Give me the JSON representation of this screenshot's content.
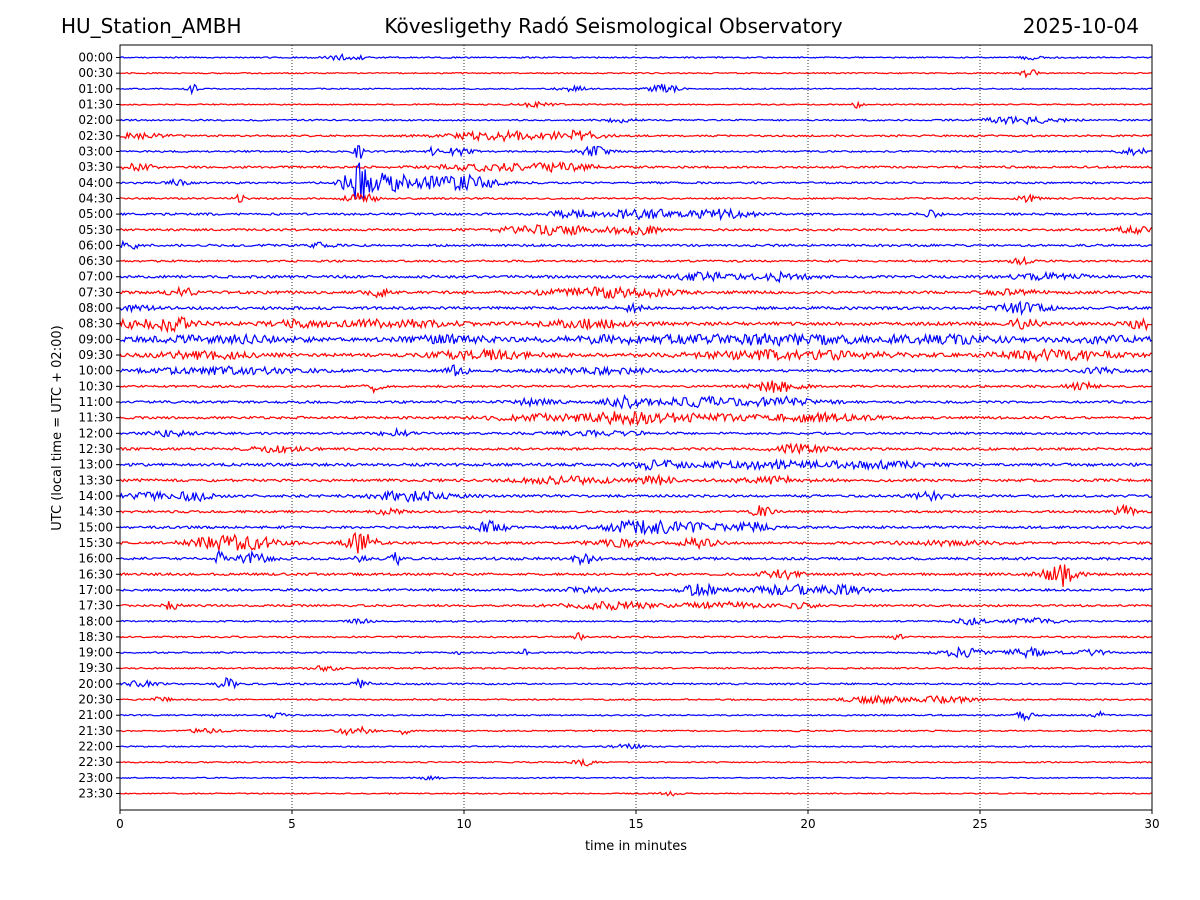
{
  "header": {
    "station": "HU_Station_AMBH",
    "observatory": "Kövesligethy Radó Seismological Observatory",
    "date": "2025-10-04"
  },
  "chart_data": {
    "type": "line",
    "title": "Kövesligethy Radó Seismological Observatory",
    "xlabel": "time in minutes",
    "ylabel": "UTC (local time = UTC + 02:00)",
    "xlim": [
      0,
      30
    ],
    "x_ticks": [
      0,
      5,
      10,
      15,
      20,
      25,
      30
    ],
    "grid": "vertical dotted lines at 5-minute ticks",
    "series_colors": [
      "#0000ff",
      "#ff0000"
    ],
    "noise_level": [
      0.6,
      0.55,
      0.55,
      0.55,
      0.7,
      0.85,
      0.8,
      0.95,
      0.85,
      0.8,
      0.95,
      0.95,
      1.0,
      0.9,
      1.2,
      1.3,
      1.3,
      1.5,
      1.6,
      1.5,
      1.2,
      1.0,
      1.1,
      1.15,
      1.0,
      1.1,
      1.3,
      1.2,
      1.2,
      1.0,
      1.1,
      1.1,
      1.2,
      1.1,
      1.0,
      0.9,
      0.7,
      0.75,
      0.7,
      0.7,
      0.8,
      0.65,
      0.65,
      0.65,
      0.6,
      0.6,
      0.5,
      0.5
    ],
    "rows": [
      {
        "label": "00:00",
        "bursts": [
          [
            6.6,
            0.35,
            3
          ],
          [
            26.5,
            0.2,
            2.5
          ]
        ]
      },
      {
        "label": "00:30",
        "bursts": [
          [
            26.4,
            0.15,
            5
          ]
        ]
      },
      {
        "label": "01:00",
        "bursts": [
          [
            2.1,
            0.1,
            4
          ],
          [
            15.8,
            0.3,
            4
          ],
          [
            13.2,
            0.3,
            2
          ]
        ]
      },
      {
        "label": "01:30",
        "bursts": [
          [
            21.4,
            0.1,
            3
          ],
          [
            12.0,
            0.4,
            2
          ]
        ]
      },
      {
        "label": "02:00",
        "bursts": [
          [
            26.2,
            0.8,
            3
          ],
          [
            14.5,
            0.3,
            2
          ]
        ]
      },
      {
        "label": "02:30",
        "bursts": [
          [
            11.0,
            1.0,
            4
          ],
          [
            13.3,
            0.5,
            4
          ],
          [
            0.6,
            0.6,
            2
          ]
        ]
      },
      {
        "label": "03:00",
        "bursts": [
          [
            6.9,
            0.1,
            10
          ],
          [
            9.1,
            0.1,
            5
          ],
          [
            9.8,
            0.3,
            3
          ],
          [
            13.8,
            0.3,
            4
          ],
          [
            29.5,
            0.3,
            3
          ]
        ]
      },
      {
        "label": "03:30",
        "bursts": [
          [
            11.0,
            1.2,
            3.5
          ],
          [
            13.0,
            0.5,
            3
          ],
          [
            0.5,
            0.4,
            2.5
          ]
        ]
      },
      {
        "label": "04:00",
        "bursts": [
          [
            6.9,
            0.25,
            15
          ],
          [
            7.6,
            0.6,
            7
          ],
          [
            9.3,
            1.0,
            5
          ],
          [
            10.3,
            0.4,
            4
          ],
          [
            1.7,
            0.2,
            3
          ]
        ]
      },
      {
        "label": "04:30",
        "bursts": [
          [
            3.5,
            0.1,
            4
          ],
          [
            7.0,
            0.3,
            5
          ],
          [
            26.4,
            0.2,
            3
          ]
        ]
      },
      {
        "label": "05:00",
        "bursts": [
          [
            15.2,
            0.9,
            4
          ],
          [
            17.6,
            0.6,
            4
          ],
          [
            13.0,
            0.5,
            2.5
          ],
          [
            23.6,
            0.2,
            3
          ]
        ]
      },
      {
        "label": "05:30",
        "bursts": [
          [
            12.5,
            1.0,
            4
          ],
          [
            15.0,
            0.5,
            4
          ],
          [
            29.5,
            0.4,
            3
          ]
        ]
      },
      {
        "label": "06:00",
        "bursts": [
          [
            0.2,
            0.3,
            3
          ],
          [
            5.8,
            0.3,
            2
          ]
        ]
      },
      {
        "label": "06:30",
        "bursts": [
          [
            26.2,
            0.2,
            2.5
          ]
        ]
      },
      {
        "label": "07:00",
        "bursts": [
          [
            17.0,
            0.6,
            3.5
          ],
          [
            19.2,
            0.6,
            3.5
          ],
          [
            27.0,
            0.8,
            2.5
          ]
        ]
      },
      {
        "label": "07:30",
        "bursts": [
          [
            1.8,
            0.25,
            4
          ],
          [
            7.5,
            0.2,
            4
          ],
          [
            13.5,
            1.0,
            3
          ],
          [
            15.0,
            0.8,
            3
          ],
          [
            26.0,
            0.5,
            2
          ]
        ]
      },
      {
        "label": "08:00",
        "bursts": [
          [
            14.9,
            0.2,
            3
          ],
          [
            26.2,
            0.5,
            4
          ],
          [
            0.5,
            0.4,
            2
          ]
        ]
      },
      {
        "label": "08:30",
        "bursts": [
          [
            0.3,
            1.3,
            3
          ],
          [
            1.5,
            0.3,
            5
          ],
          [
            5.0,
            0.5,
            3
          ],
          [
            8.0,
            1.2,
            3
          ],
          [
            13.5,
            1.0,
            3
          ],
          [
            26.3,
            0.3,
            4
          ],
          [
            29.7,
            0.3,
            4
          ]
        ]
      },
      {
        "label": "09:00",
        "bursts": [
          [
            3.0,
            1.5,
            3
          ],
          [
            9.5,
            1.0,
            3
          ],
          [
            19.0,
            2.0,
            4
          ],
          [
            14.5,
            1.5,
            3
          ],
          [
            24.0,
            1.5,
            3
          ],
          [
            28.5,
            1.0,
            2.5
          ]
        ]
      },
      {
        "label": "09:30",
        "bursts": [
          [
            2.5,
            1.0,
            3
          ],
          [
            10.5,
            1.0,
            3.5
          ],
          [
            19.5,
            2.0,
            3.5
          ],
          [
            27.2,
            1.2,
            4
          ]
        ]
      },
      {
        "label": "10:00",
        "bursts": [
          [
            3.0,
            1.5,
            3
          ],
          [
            9.8,
            0.2,
            5
          ],
          [
            14.0,
            1.0,
            2.5
          ],
          [
            28.5,
            0.3,
            3
          ]
        ]
      },
      {
        "label": "10:30",
        "bursts": [
          [
            7.4,
            0.15,
            5
          ],
          [
            19.1,
            0.5,
            5
          ],
          [
            28.0,
            0.3,
            3
          ]
        ]
      },
      {
        "label": "11:00",
        "bursts": [
          [
            14.7,
            0.4,
            5
          ],
          [
            16.8,
            0.8,
            4
          ],
          [
            19.3,
            0.8,
            4
          ],
          [
            12.0,
            0.5,
            2.5
          ]
        ]
      },
      {
        "label": "11:30",
        "bursts": [
          [
            14.5,
            0.8,
            4
          ],
          [
            16.5,
            1.5,
            3
          ],
          [
            20.5,
            1.0,
            3.5
          ],
          [
            12.0,
            1.0,
            2.5
          ]
        ]
      },
      {
        "label": "12:00",
        "bursts": [
          [
            1.5,
            0.4,
            2.5
          ],
          [
            8.0,
            0.3,
            3
          ],
          [
            14.0,
            1.0,
            2
          ]
        ]
      },
      {
        "label": "12:30",
        "bursts": [
          [
            19.8,
            0.5,
            4
          ],
          [
            4.5,
            0.5,
            2.5
          ]
        ]
      },
      {
        "label": "13:00",
        "bursts": [
          [
            15.6,
            0.4,
            4
          ],
          [
            18.5,
            1.5,
            3
          ],
          [
            22.0,
            1.0,
            2.5
          ]
        ]
      },
      {
        "label": "13:30",
        "bursts": [
          [
            13.0,
            1.0,
            3
          ],
          [
            15.6,
            0.3,
            4
          ],
          [
            19.0,
            0.8,
            2.5
          ]
        ]
      },
      {
        "label": "14:00",
        "bursts": [
          [
            2.2,
            0.3,
            4
          ],
          [
            8.5,
            0.8,
            4
          ],
          [
            23.6,
            0.3,
            4
          ],
          [
            1.0,
            0.6,
            2.5
          ]
        ]
      },
      {
        "label": "14:30",
        "bursts": [
          [
            18.6,
            0.2,
            7
          ],
          [
            29.2,
            0.2,
            5
          ],
          [
            7.8,
            0.3,
            2.5
          ]
        ]
      },
      {
        "label": "15:00",
        "bursts": [
          [
            10.8,
            0.3,
            6
          ],
          [
            16.0,
            1.3,
            4
          ],
          [
            18.5,
            0.4,
            4
          ],
          [
            15.0,
            0.5,
            3
          ]
        ]
      },
      {
        "label": "15:30",
        "bursts": [
          [
            2.8,
            0.7,
            5
          ],
          [
            3.8,
            0.6,
            5
          ],
          [
            7.0,
            0.3,
            9
          ],
          [
            14.5,
            0.6,
            3
          ],
          [
            16.8,
            0.4,
            4
          ],
          [
            24.0,
            1.0,
            2
          ]
        ]
      },
      {
        "label": "16:00",
        "bursts": [
          [
            2.9,
            0.1,
            6
          ],
          [
            3.9,
            0.3,
            5
          ],
          [
            8.0,
            0.1,
            6
          ],
          [
            13.5,
            0.2,
            5
          ],
          [
            7.0,
            0.1,
            4
          ]
        ]
      },
      {
        "label": "16:30",
        "bursts": [
          [
            19.2,
            0.4,
            4
          ],
          [
            27.3,
            0.4,
            6
          ],
          [
            27.5,
            0.1,
            8
          ]
        ]
      },
      {
        "label": "17:00",
        "bursts": [
          [
            16.9,
            0.4,
            5
          ],
          [
            19.5,
            0.8,
            4
          ],
          [
            21.0,
            0.6,
            3
          ],
          [
            13.5,
            0.5,
            2
          ]
        ]
      },
      {
        "label": "17:30",
        "bursts": [
          [
            1.5,
            0.15,
            4
          ],
          [
            14.3,
            1.0,
            3
          ],
          [
            17.5,
            0.8,
            3
          ],
          [
            19.8,
            0.3,
            3
          ]
        ]
      },
      {
        "label": "18:00",
        "bursts": [
          [
            24.7,
            0.3,
            3
          ],
          [
            26.5,
            0.5,
            2.5
          ],
          [
            7.0,
            0.2,
            2
          ]
        ]
      },
      {
        "label": "18:30",
        "bursts": [
          [
            13.3,
            0.1,
            4
          ],
          [
            22.6,
            0.1,
            4
          ]
        ]
      },
      {
        "label": "19:00",
        "bursts": [
          [
            11.8,
            0.05,
            7
          ],
          [
            24.5,
            0.5,
            4
          ],
          [
            26.5,
            0.5,
            4
          ],
          [
            28.3,
            0.3,
            3
          ],
          [
            9.8,
            0.05,
            3
          ]
        ]
      },
      {
        "label": "19:30",
        "bursts": [
          [
            6.0,
            0.3,
            2
          ]
        ]
      },
      {
        "label": "20:00",
        "bursts": [
          [
            3.1,
            0.2,
            5
          ],
          [
            7.0,
            0.15,
            4
          ],
          [
            0.6,
            0.3,
            2.5
          ]
        ]
      },
      {
        "label": "20:30",
        "bursts": [
          [
            22.0,
            0.6,
            3.5
          ],
          [
            24.0,
            0.6,
            3
          ],
          [
            1.2,
            0.2,
            2
          ]
        ]
      },
      {
        "label": "21:00",
        "bursts": [
          [
            26.3,
            0.15,
            5
          ],
          [
            28.5,
            0.15,
            3
          ],
          [
            4.5,
            0.2,
            2
          ]
        ]
      },
      {
        "label": "21:30",
        "bursts": [
          [
            6.8,
            0.3,
            4
          ],
          [
            8.3,
            0.1,
            4
          ],
          [
            2.5,
            0.3,
            2
          ]
        ]
      },
      {
        "label": "22:00",
        "bursts": [
          [
            14.8,
            0.3,
            2
          ]
        ]
      },
      {
        "label": "22:30",
        "bursts": [
          [
            13.5,
            0.2,
            3
          ]
        ]
      },
      {
        "label": "23:00",
        "bursts": [
          [
            9.0,
            0.2,
            2
          ]
        ]
      },
      {
        "label": "23:30",
        "bursts": [
          [
            16.0,
            0.2,
            2
          ]
        ]
      }
    ]
  }
}
